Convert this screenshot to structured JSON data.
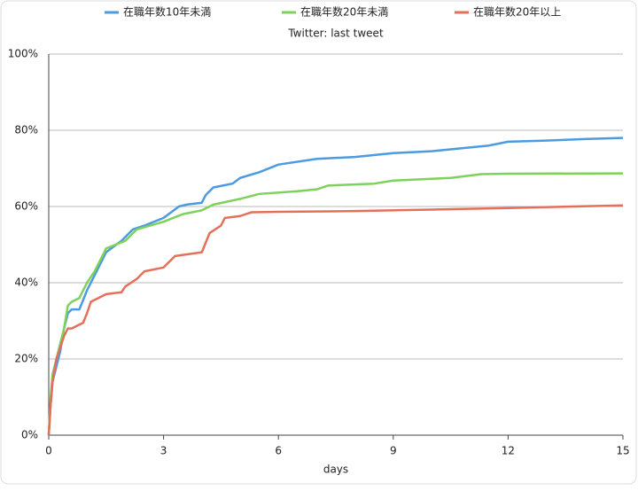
{
  "chart_data": {
    "type": "line",
    "title": "Twitter: last tweet",
    "x_label": "days",
    "xlim": [
      0,
      15
    ],
    "xticks": [
      0,
      3,
      6,
      9,
      12,
      15
    ],
    "ylim": [
      0,
      100
    ],
    "yticks": [
      {
        "value": 0,
        "label": "0%"
      },
      {
        "value": 20,
        "label": "20%"
      },
      {
        "value": 40,
        "label": "40%"
      },
      {
        "value": 60,
        "label": "60%"
      },
      {
        "value": 80,
        "label": "80%"
      },
      {
        "value": 100,
        "label": "100%"
      }
    ],
    "grid": true,
    "legend": "top",
    "series": [
      {
        "name": "在職年数10年未満",
        "color": "#4c9be0",
        "x": [
          0,
          0.05,
          0.1,
          0.2,
          0.3,
          0.4,
          0.5,
          0.6,
          0.8,
          1.0,
          1.2,
          1.5,
          1.9,
          2.2,
          2.5,
          3.0,
          3.4,
          3.6,
          4.0,
          4.1,
          4.3,
          4.8,
          5.0,
          5.5,
          6.0,
          7.0,
          8.0,
          9.0,
          10.0,
          10.5,
          11.5,
          12.0,
          13.0,
          14.0,
          15.0
        ],
        "values": [
          0,
          8,
          14,
          18,
          22,
          28,
          32,
          33,
          33,
          38,
          42,
          48,
          51,
          54,
          55,
          57,
          60,
          60.5,
          61,
          63,
          65,
          66,
          67.5,
          69,
          71,
          72.5,
          73,
          74,
          74.5,
          75,
          76,
          77,
          77.3,
          77.7,
          78
        ]
      },
      {
        "name": "在職年数20年未満",
        "color": "#7ed15a",
        "x": [
          0,
          0.05,
          0.1,
          0.2,
          0.3,
          0.4,
          0.5,
          0.6,
          0.8,
          1.0,
          1.2,
          1.5,
          2.0,
          2.3,
          3.0,
          3.5,
          4.0,
          4.3,
          5.0,
          5.5,
          6.5,
          7.0,
          7.3,
          8.5,
          9.0,
          10.5,
          11.3,
          12,
          15
        ],
        "values": [
          0,
          10,
          16,
          20,
          24,
          28,
          34,
          35,
          36,
          40,
          43,
          49,
          51,
          54,
          56,
          58,
          59,
          60.5,
          62,
          63.3,
          64,
          64.5,
          65.5,
          66,
          66.8,
          67.5,
          68.5,
          68.6,
          68.7
        ]
      },
      {
        "name": "在職年数20年以上",
        "color": "#e5705a",
        "x": [
          0,
          0.05,
          0.1,
          0.2,
          0.3,
          0.4,
          0.5,
          0.6,
          0.8,
          0.9,
          1.0,
          1.1,
          1.5,
          1.9,
          2.0,
          2.3,
          2.5,
          3.0,
          3.3,
          4.0,
          4.2,
          4.5,
          4.6,
          5.0,
          5.3,
          6,
          8,
          10,
          12,
          15
        ],
        "values": [
          0,
          8,
          14,
          20,
          23,
          26,
          28,
          28,
          29,
          29.5,
          32,
          35,
          37,
          37.5,
          39,
          41,
          43,
          44,
          47,
          48,
          53,
          55,
          57,
          57.5,
          58.5,
          58.6,
          58.8,
          59.2,
          59.6,
          60.3
        ]
      }
    ]
  }
}
